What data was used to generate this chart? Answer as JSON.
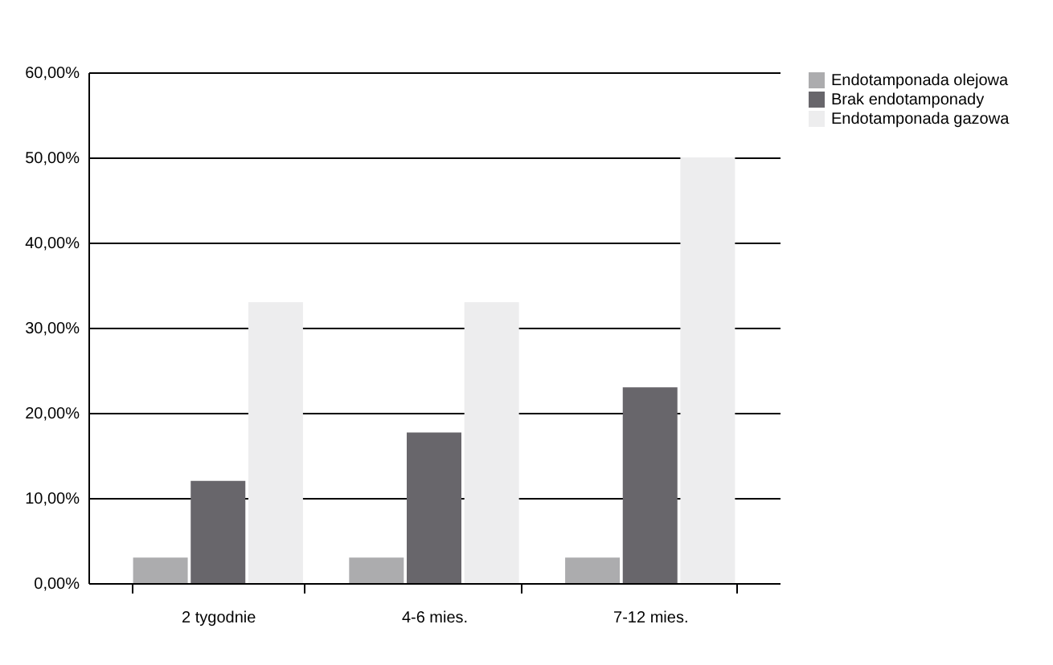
{
  "chart_data": {
    "type": "bar",
    "categories": [
      "2 tygodnie",
      "4-6 mies.",
      "7-12 mies."
    ],
    "series": [
      {
        "name": "Endotamponada olejowa",
        "color": "#acacae",
        "values": [
          3,
          3,
          3
        ]
      },
      {
        "name": "Brak endotamponady",
        "color": "#68666b",
        "values": [
          12,
          17.7,
          23
        ]
      },
      {
        "name": "Endotamponada gazowa",
        "color": "#ededee",
        "values": [
          33,
          33,
          50
        ]
      }
    ],
    "ylim": [
      0,
      60
    ],
    "yticks": [
      {
        "value": 0,
        "label": "0,00%"
      },
      {
        "value": 10,
        "label": "10,00%"
      },
      {
        "value": 20,
        "label": "20,00%"
      },
      {
        "value": 30,
        "label": "30,00%"
      },
      {
        "value": 40,
        "label": "40,00%"
      },
      {
        "value": 50,
        "label": "50,00%"
      },
      {
        "value": 60,
        "label": "60,00%"
      }
    ],
    "grid": "y",
    "legend": "right"
  }
}
